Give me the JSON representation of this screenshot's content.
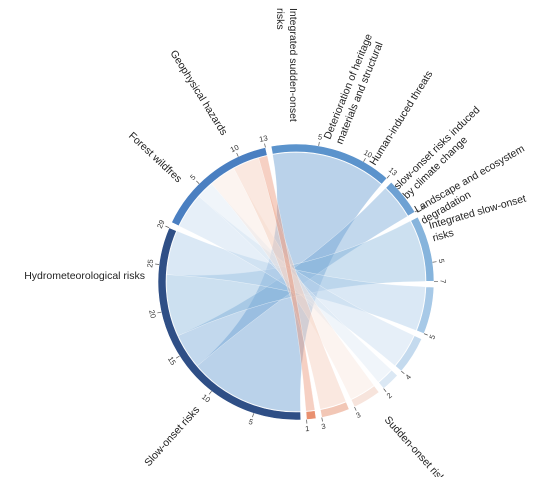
{
  "chart_data": {
    "type": "chord",
    "groups": [
      {
        "id": "sudden",
        "name": "Sudden-onset risks",
        "total": 29,
        "color": "#2f4f86",
        "ticks": [
          {
            "v": 5,
            "label": "5"
          },
          {
            "v": 10,
            "label": "10"
          },
          {
            "v": 15,
            "label": "15"
          },
          {
            "v": 20,
            "label": "20"
          },
          {
            "v": 25,
            "label": "25"
          },
          {
            "v": 29,
            "label": "29"
          }
        ]
      },
      {
        "id": "slow",
        "name": "Slow-onset risks",
        "total": 13,
        "color": "#4a7fc1",
        "ticks": [
          {
            "v": 5,
            "label": "5"
          },
          {
            "v": 10,
            "label": "10"
          },
          {
            "v": 13,
            "label": "13"
          }
        ]
      },
      {
        "id": "hydro",
        "name": "Hydrometeorological risks",
        "total": 13,
        "color": "#5b93cc",
        "ticks": [
          {
            "v": 5,
            "label": "5"
          },
          {
            "v": 10,
            "label": "10"
          },
          {
            "v": 13,
            "label": "13"
          }
        ]
      },
      {
        "id": "fire",
        "name": "Forest wildfires",
        "total": 4,
        "color": "#6ea1d3",
        "ticks": [
          {
            "v": 4,
            "label": "4"
          }
        ]
      },
      {
        "id": "geo",
        "name": "Geophysical hazards",
        "total": 7,
        "color": "#86b4dc",
        "ticks": [
          {
            "v": 5,
            "label": "5"
          },
          {
            "v": 7,
            "label": "7"
          }
        ]
      },
      {
        "id": "integ_sudden",
        "name": "Integrated sudden-onset risks",
        "total": 5,
        "color": "#a7c9e7",
        "ticks": [
          {
            "v": 5,
            "label": "5"
          }
        ]
      },
      {
        "id": "heritage",
        "name": "Deterioration of heritage materials and structural",
        "total": 4,
        "color": "#c4daee",
        "ticks": [
          {
            "v": 4,
            "label": "4"
          }
        ]
      },
      {
        "id": "human",
        "name": "Human-induced threats",
        "total": 2,
        "color": "#dbe8f4",
        "ticks": [
          {
            "v": 2,
            "label": "2"
          }
        ]
      },
      {
        "id": "climate",
        "name": "slow-onset risks induced by climate change",
        "total": 3,
        "color": "#f7e4dc",
        "ticks": [
          {
            "v": 3,
            "label": "3"
          }
        ]
      },
      {
        "id": "landscape",
        "name": "Landscape and ecosystem degradation",
        "total": 3,
        "color": "#f2c7b6",
        "ticks": [
          {
            "v": 3,
            "label": "3"
          }
        ]
      },
      {
        "id": "integ_slow",
        "name": "Integrated slow-onset risks",
        "total": 1,
        "color": "#e9906f",
        "ticks": [
          {
            "v": 1,
            "label": "1"
          }
        ]
      }
    ],
    "links": [
      {
        "source": "hydro",
        "target": "sudden",
        "value": 13
      },
      {
        "source": "fire",
        "target": "sudden",
        "value": 4
      },
      {
        "source": "geo",
        "target": "sudden",
        "value": 7
      },
      {
        "source": "integ_sudden",
        "target": "sudden",
        "value": 5
      },
      {
        "source": "heritage",
        "target": "slow",
        "value": 4
      },
      {
        "source": "human",
        "target": "slow",
        "value": 2
      },
      {
        "source": "climate",
        "target": "slow",
        "value": 3
      },
      {
        "source": "landscape",
        "target": "slow",
        "value": 3
      },
      {
        "source": "integ_slow",
        "target": "slow",
        "value": 1
      }
    ]
  }
}
